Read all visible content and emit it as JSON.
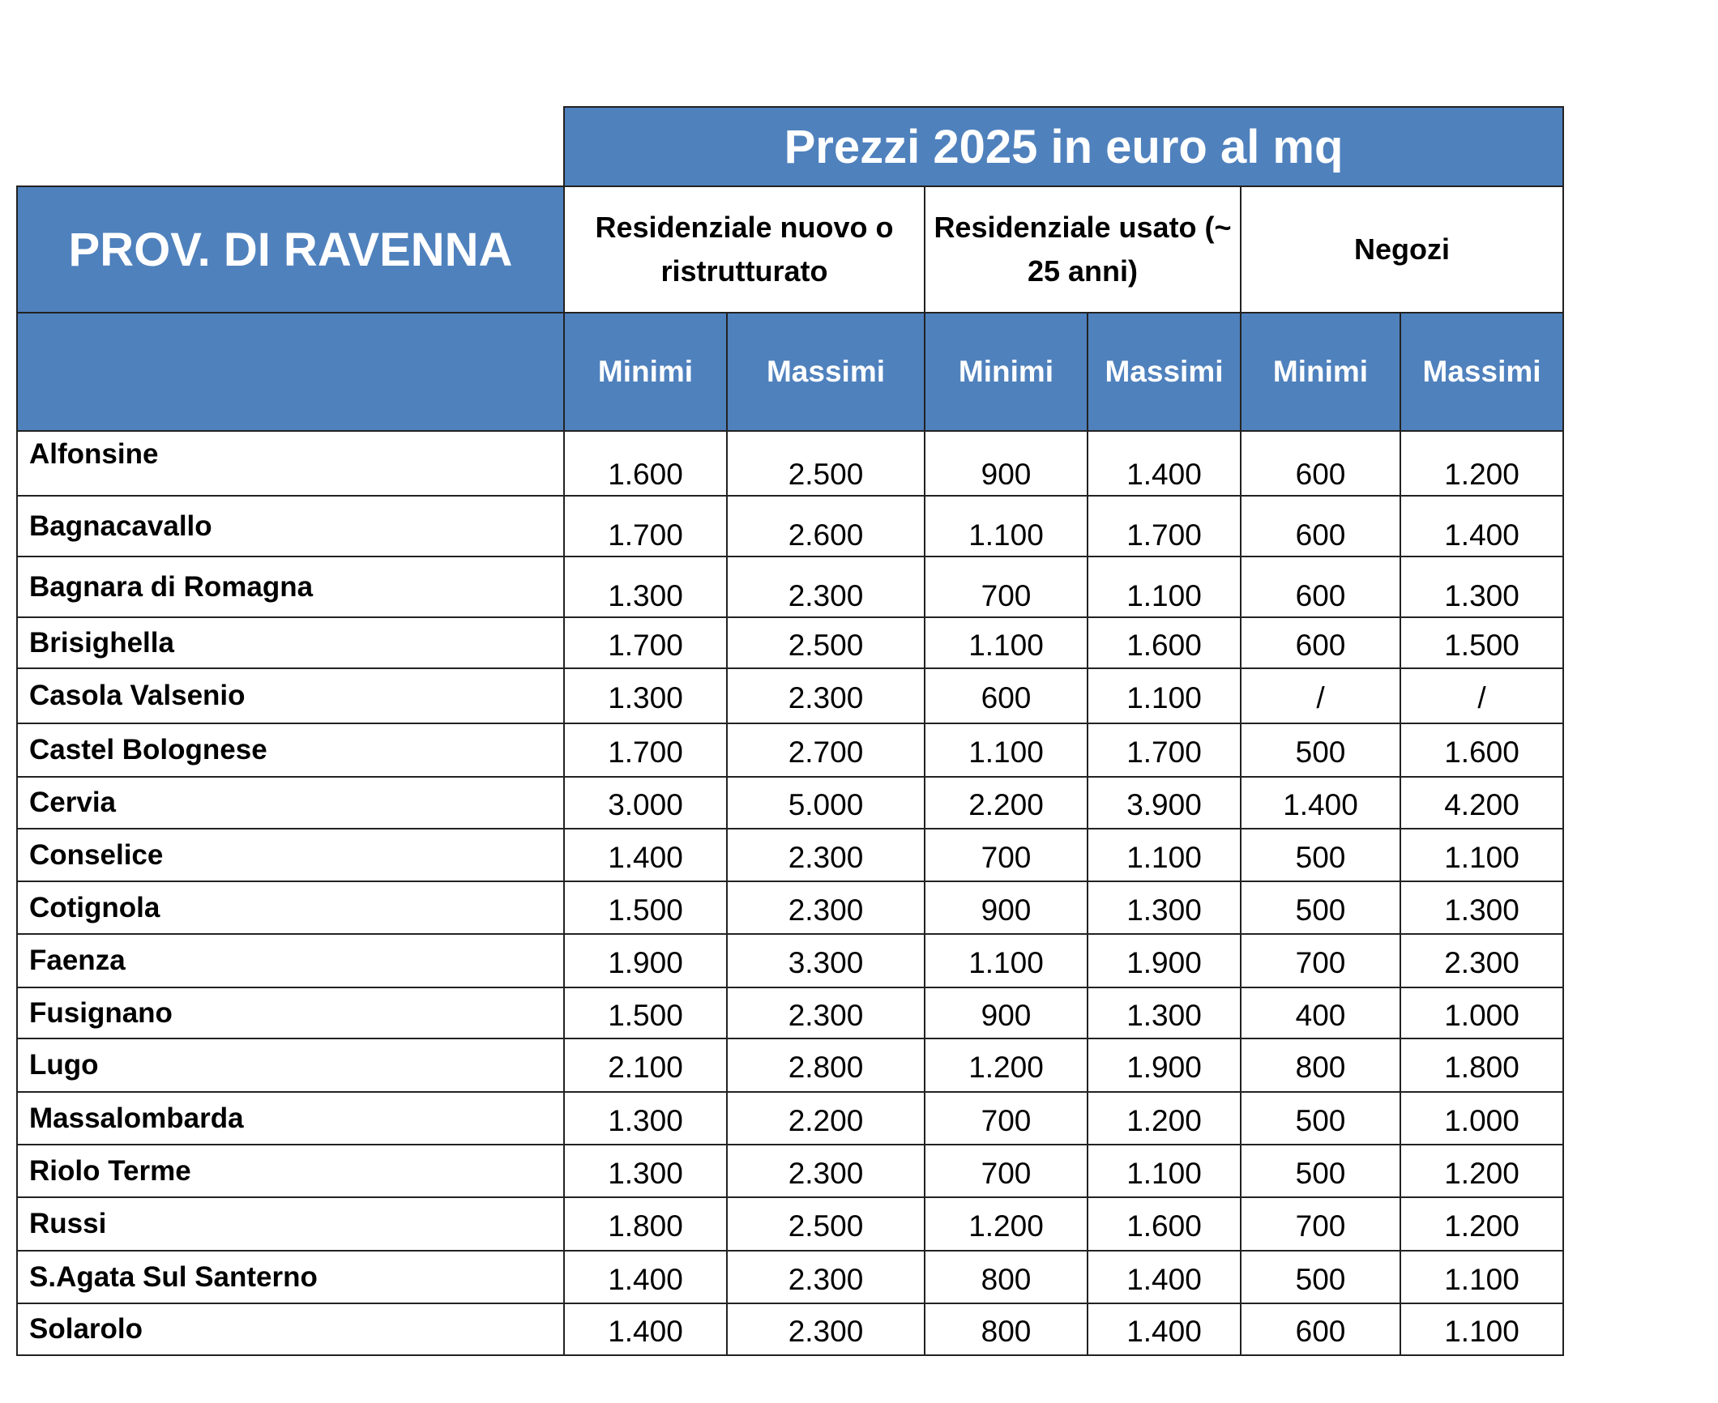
{
  "header": {
    "title": "Prezzi 2025 in euro al mq",
    "province": "PROV. DI RAVENNA",
    "groups": [
      "Residenziale nuovo o ristrutturato",
      "Residenziale usato (~ 25 anni)",
      "Negozi"
    ],
    "subcolumns": [
      "Minimi",
      "Massimi",
      "Minimi",
      "Massimi",
      "Minimi",
      "Massimi"
    ]
  },
  "colors": {
    "header_blue": "#4F81BD"
  },
  "rows": [
    {
      "name": "Alfonsine",
      "values": [
        "1.600",
        "2.500",
        "900",
        "1.400",
        "600",
        "1.200"
      ]
    },
    {
      "name": "Bagnacavallo",
      "values": [
        "1.700",
        "2.600",
        "1.100",
        "1.700",
        "600",
        "1.400"
      ]
    },
    {
      "name": "Bagnara di Romagna",
      "values": [
        "1.300",
        "2.300",
        "700",
        "1.100",
        "600",
        "1.300"
      ]
    },
    {
      "name": "Brisighella",
      "values": [
        "1.700",
        "2.500",
        "1.100",
        "1.600",
        "600",
        "1.500"
      ]
    },
    {
      "name": "Casola Valsenio",
      "values": [
        "1.300",
        "2.300",
        "600",
        "1.100",
        "/",
        "/"
      ]
    },
    {
      "name": "Castel Bolognese",
      "values": [
        "1.700",
        "2.700",
        "1.100",
        "1.700",
        "500",
        "1.600"
      ]
    },
    {
      "name": "Cervia",
      "values": [
        "3.000",
        "5.000",
        "2.200",
        "3.900",
        "1.400",
        "4.200"
      ]
    },
    {
      "name": "Conselice",
      "values": [
        "1.400",
        "2.300",
        "700",
        "1.100",
        "500",
        "1.100"
      ]
    },
    {
      "name": "Cotignola",
      "values": [
        "1.500",
        "2.300",
        "900",
        "1.300",
        "500",
        "1.300"
      ]
    },
    {
      "name": "Faenza",
      "values": [
        "1.900",
        "3.300",
        "1.100",
        "1.900",
        "700",
        "2.300"
      ]
    },
    {
      "name": "Fusignano",
      "values": [
        "1.500",
        "2.300",
        "900",
        "1.300",
        "400",
        "1.000"
      ]
    },
    {
      "name": "Lugo",
      "values": [
        "2.100",
        "2.800",
        "1.200",
        "1.900",
        "800",
        "1.800"
      ]
    },
    {
      "name": "Massalombarda",
      "values": [
        "1.300",
        "2.200",
        "700",
        "1.200",
        "500",
        "1.000"
      ]
    },
    {
      "name": "Riolo Terme",
      "values": [
        "1.300",
        "2.300",
        "700",
        "1.100",
        "500",
        "1.200"
      ]
    },
    {
      "name": "Russi",
      "values": [
        "1.800",
        "2.500",
        "1.200",
        "1.600",
        "700",
        "1.200"
      ]
    },
    {
      "name": "S.Agata Sul Santerno",
      "values": [
        "1.400",
        "2.300",
        "800",
        "1.400",
        "500",
        "1.100"
      ]
    },
    {
      "name": "Solarolo",
      "values": [
        "1.400",
        "2.300",
        "800",
        "1.400",
        "600",
        "1.100"
      ]
    }
  ]
}
